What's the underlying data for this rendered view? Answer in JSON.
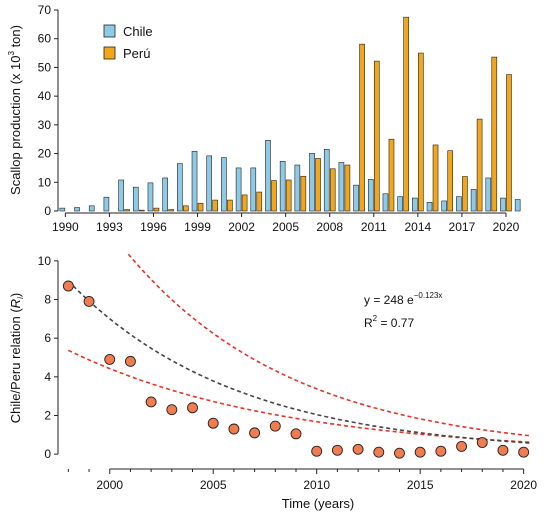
{
  "chart_data": [
    {
      "type": "bar",
      "ylabel": "Scallop production (x 10",
      "ylabel_sup": "3",
      "ylabel_suffix": " ton)",
      "ylim": [
        0,
        70
      ],
      "yticks": [
        0,
        10,
        20,
        30,
        40,
        50,
        60,
        70
      ],
      "xtick_labels": [
        "1990",
        "1993",
        "1996",
        "1999",
        "2002",
        "2005",
        "2008",
        "2011",
        "2014",
        "2017",
        "2020"
      ],
      "legend_position": "top-left",
      "categories": [
        1990,
        1991,
        1992,
        1993,
        1994,
        1995,
        1996,
        1997,
        1998,
        1999,
        2000,
        2001,
        2002,
        2003,
        2004,
        2005,
        2006,
        2007,
        2008,
        2009,
        2010,
        2011,
        2012,
        2013,
        2014,
        2015,
        2016,
        2017,
        2018,
        2019,
        2020,
        2021
      ],
      "series": [
        {
          "name": "Chile",
          "color": "#8ecae6",
          "values": [
            1.0,
            1.2,
            1.8,
            4.8,
            10.8,
            8.3,
            9.8,
            11.5,
            16.5,
            20.8,
            19.2,
            18.6,
            15.0,
            15.0,
            24.6,
            17.3,
            16.0,
            20.1,
            21.5,
            16.9,
            9.0,
            11.0,
            6.0,
            5.0,
            4.5,
            3.0,
            3.5,
            5.0,
            7.5,
            11.5,
            4.5,
            4.0
          ]
        },
        {
          "name": "Perú",
          "color": "#f0a71c",
          "values": [
            0,
            0,
            0,
            0,
            0.5,
            0.3,
            1.0,
            0.5,
            1.8,
            2.7,
            3.8,
            3.8,
            5.6,
            6.6,
            10.6,
            10.8,
            12.1,
            18.3,
            14.7,
            16.0,
            58.1,
            52.2,
            25.0,
            67.5,
            55.0,
            23.0,
            21.0,
            12.0,
            32.0,
            53.6,
            47.5,
            0
          ]
        }
      ]
    },
    {
      "type": "scatter",
      "xlabel": "Time (years)",
      "ylabel": "Chile/Peru relation (",
      "ylabel_var": "R",
      "ylabel_sub": "i",
      "ylabel_suffix": ")",
      "xlim": [
        1997.5,
        2020.5
      ],
      "ylim": [
        -0.2,
        10.2
      ],
      "xticks": [
        2000,
        2005,
        2010,
        2015,
        2020
      ],
      "yticks": [
        0,
        2,
        4,
        6,
        8,
        10
      ],
      "points": {
        "x": [
          1998,
          1999,
          2000,
          2001,
          2002,
          2003,
          2004,
          2005,
          2006,
          2007,
          2008,
          2009,
          2010,
          2011,
          2012,
          2013,
          2014,
          2015,
          2016,
          2017,
          2018,
          2019,
          2020
        ],
        "y": [
          8.7,
          7.9,
          4.9,
          4.8,
          2.7,
          2.3,
          2.4,
          1.6,
          1.3,
          1.1,
          1.45,
          1.05,
          0.15,
          0.2,
          0.25,
          0.1,
          0.05,
          0.1,
          0.15,
          0.4,
          0.6,
          0.2,
          0.1
        ],
        "color": "#f07c50"
      },
      "fit": {
        "equation_text": "y = 248 e",
        "exponent_text": "−0.123x",
        "r2_label": "R",
        "r2_sup": "2",
        "r2_value": " = 0.77",
        "a": 248,
        "b": -0.123,
        "x_origin": 1971,
        "fit_color": "#444444",
        "band_color": "#e8322a",
        "band_upper_factor": 1.65,
        "band_lower_factor": 0.6,
        "band_lower_b": -0.097
      }
    }
  ]
}
